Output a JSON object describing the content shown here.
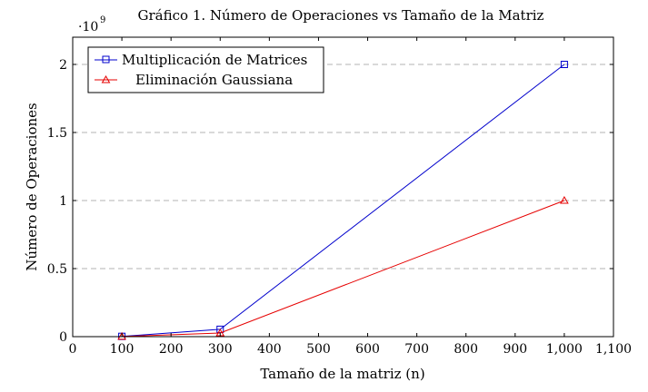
{
  "chart_data": {
    "type": "line",
    "title": "Gráfico 1. Número de Operaciones vs Tamaño de la Matriz",
    "xlabel": "Tamaño de la matriz (n)",
    "ylabel": "Número de Operaciones",
    "y_scale_label": "·10",
    "y_scale_exponent": "9",
    "xlim": [
      0,
      1100
    ],
    "ylim": [
      0,
      2.2
    ],
    "x_ticks": [
      0,
      100,
      200,
      300,
      400,
      500,
      600,
      700,
      800,
      900,
      1000,
      1100
    ],
    "x_tick_labels": [
      "0",
      "100",
      "200",
      "300",
      "400",
      "500",
      "600",
      "700",
      "800",
      "900",
      "1,000",
      "1,100"
    ],
    "y_ticks": [
      0,
      0.5,
      1,
      1.5,
      2
    ],
    "y_tick_labels": [
      "0",
      "0.5",
      "1",
      "1.5",
      "2"
    ],
    "grid": "horizontal dashed",
    "legend_position": "top-left",
    "series": [
      {
        "name": "Multiplicación de Matrices",
        "color": "#0000cc",
        "marker": "square",
        "x": [
          100,
          300,
          1000
        ],
        "values": [
          0.002,
          0.054,
          2.0
        ]
      },
      {
        "name": "Eliminación Gaussiana",
        "color": "#e60000",
        "marker": "triangle",
        "x": [
          100,
          300,
          1000
        ],
        "values": [
          0.001,
          0.027,
          1.0
        ]
      }
    ]
  }
}
